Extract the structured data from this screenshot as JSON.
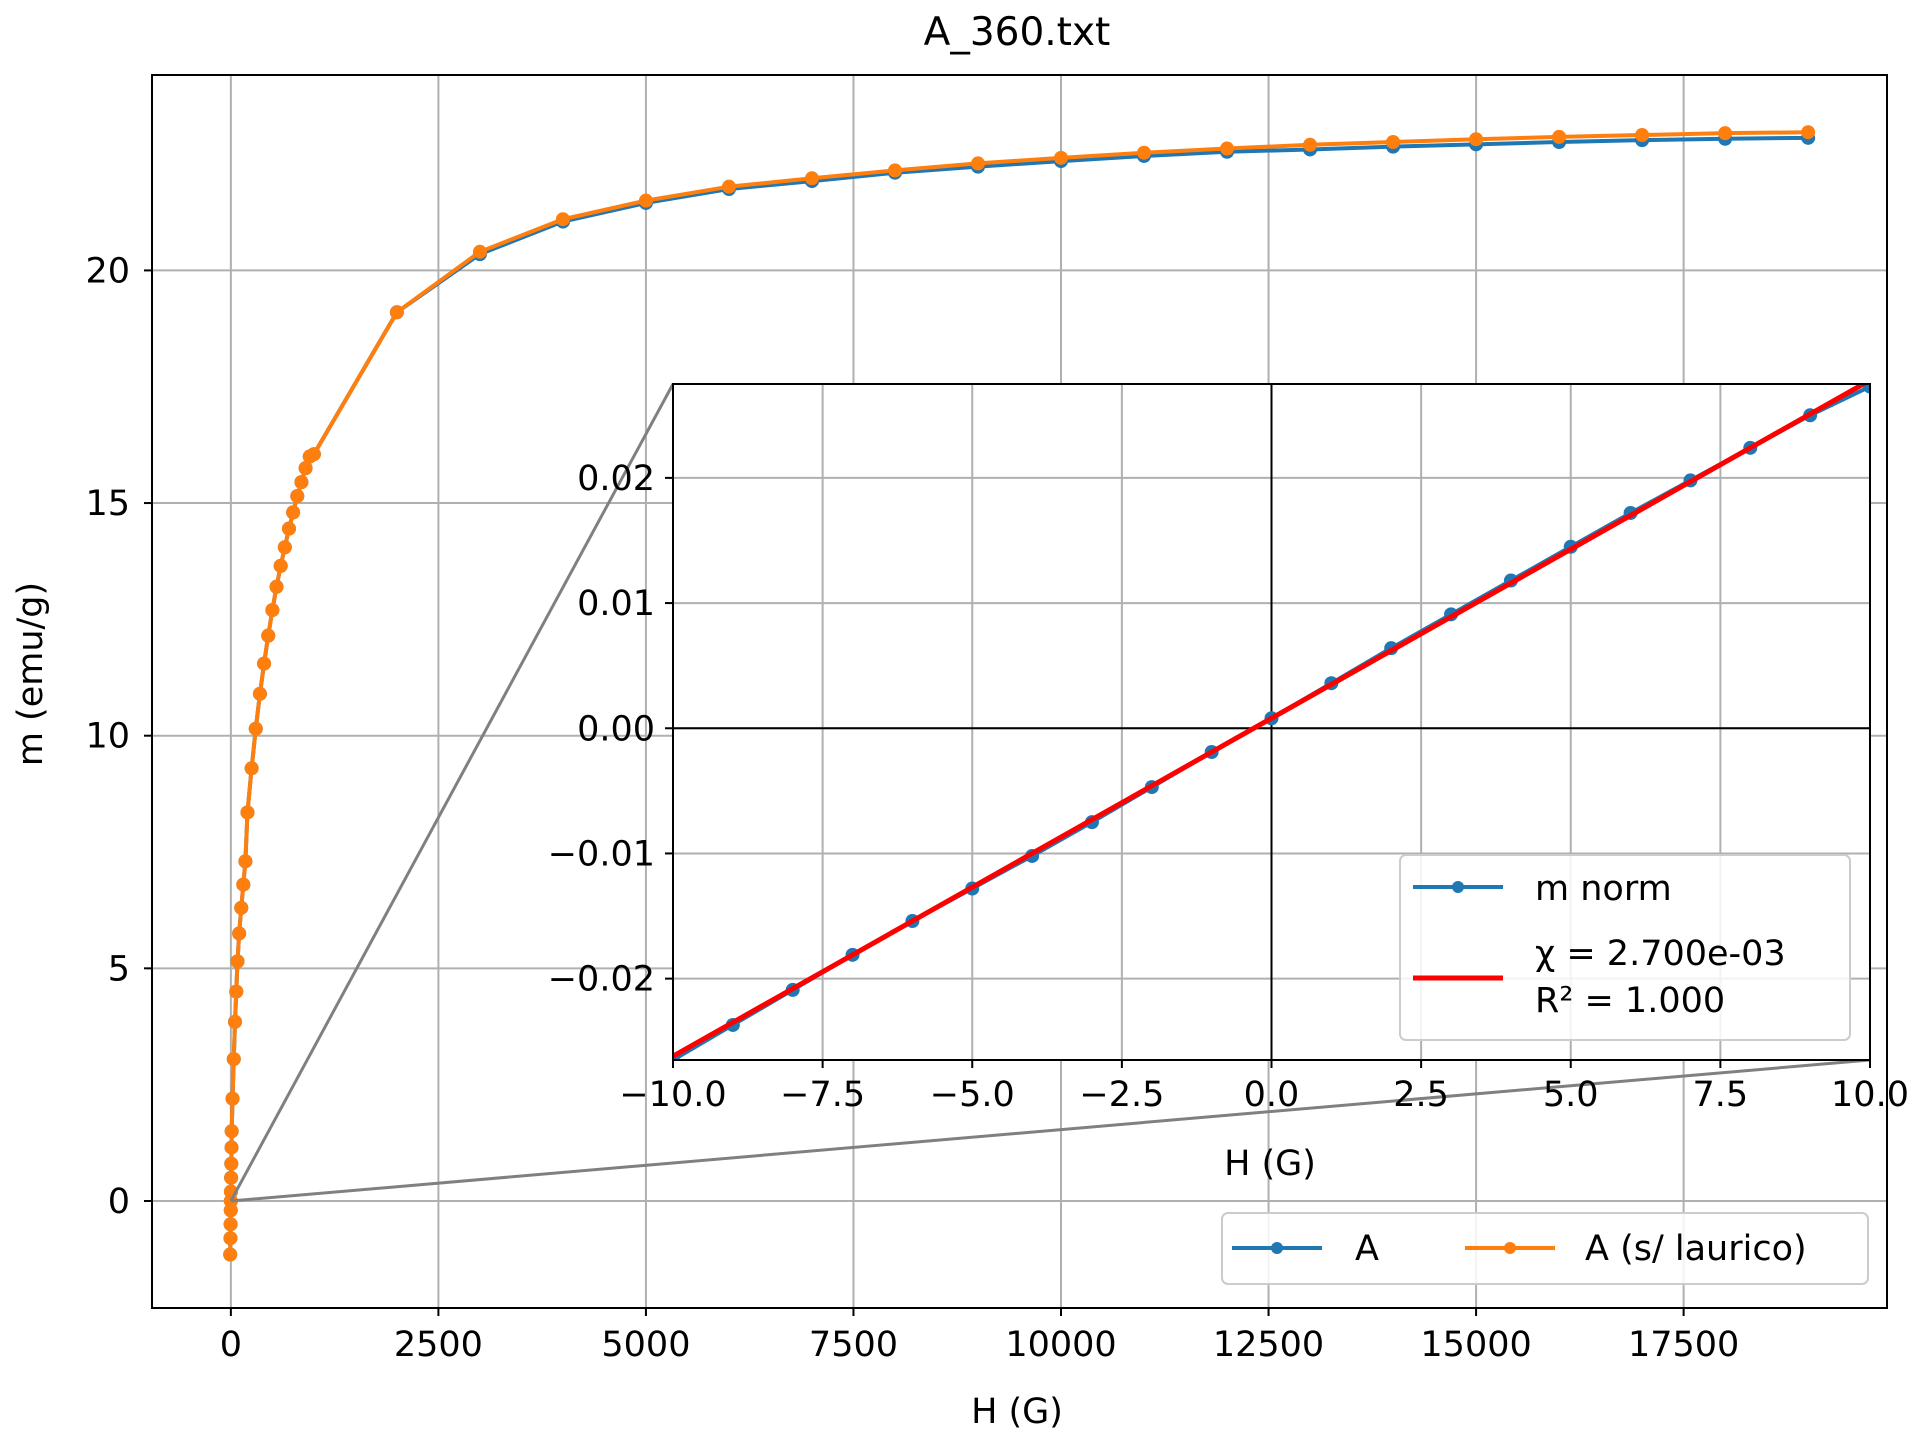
{
  "chart_data": [
    {
      "type": "line",
      "title": "A_360.txt",
      "xlabel": "H (G)",
      "ylabel": "m (emu/g)",
      "xlim": [
        -950,
        19950
      ],
      "ylim": [
        -2.3,
        24.2
      ],
      "grid": true,
      "xticks": [
        0,
        2500,
        5000,
        7500,
        10000,
        12500,
        15000,
        17500
      ],
      "xtick_labels": [
        "0",
        "2500",
        "5000",
        "7500",
        "10000",
        "12500",
        "15000",
        "17500"
      ],
      "yticks": [
        0,
        5,
        10,
        15,
        20
      ],
      "ytick_labels": [
        "0",
        "5",
        "10",
        "15",
        "20"
      ],
      "legend": {
        "placement": "lower-right",
        "entries": [
          "A",
          "A (s/ laurico)"
        ]
      },
      "series": [
        {
          "name": "A",
          "color": "#1f77b4",
          "marker": "circle",
          "x": [
            -8,
            -5,
            -3,
            -1,
            0,
            1,
            3,
            5,
            8,
            10,
            20,
            35,
            50,
            65,
            80,
            100,
            125,
            150,
            175,
            200,
            250,
            300,
            350,
            400,
            450,
            500,
            550,
            600,
            650,
            700,
            750,
            800,
            850,
            900,
            950,
            1000,
            2000,
            3000,
            4000,
            5000,
            6000,
            7000,
            8000,
            9000,
            10000,
            11000,
            12000,
            13000,
            14000,
            15000,
            16000,
            17000,
            18000,
            19000
          ],
          "y": [
            -1.15,
            -0.8,
            -0.5,
            -0.2,
            0.0,
            0.2,
            0.5,
            0.8,
            1.15,
            1.5,
            2.2,
            3.05,
            3.85,
            4.5,
            5.15,
            5.75,
            6.3,
            6.8,
            7.3,
            8.35,
            9.3,
            10.15,
            10.9,
            11.55,
            12.15,
            12.7,
            13.2,
            13.65,
            14.05,
            14.45,
            14.8,
            15.15,
            15.45,
            15.75,
            16.0,
            16.05,
            19.1,
            20.35,
            21.05,
            21.45,
            21.75,
            21.92,
            22.1,
            22.23,
            22.35,
            22.46,
            22.55,
            22.6,
            22.66,
            22.71,
            22.76,
            22.8,
            22.83,
            22.85
          ]
        },
        {
          "name": "A (s/ laurico)",
          "color": "#ff7f0e",
          "marker": "circle",
          "x": [
            -8,
            -5,
            -3,
            -1,
            0,
            1,
            3,
            5,
            8,
            10,
            20,
            35,
            50,
            65,
            80,
            100,
            125,
            150,
            175,
            200,
            250,
            300,
            350,
            400,
            450,
            500,
            550,
            600,
            650,
            700,
            750,
            800,
            850,
            900,
            950,
            1000,
            2000,
            3000,
            4000,
            5000,
            6000,
            7000,
            8000,
            9000,
            10000,
            11000,
            12000,
            13000,
            14000,
            15000,
            16000,
            17000,
            18000,
            19000
          ],
          "y": [
            -1.15,
            -0.8,
            -0.5,
            -0.2,
            0.0,
            0.2,
            0.5,
            0.8,
            1.15,
            1.5,
            2.2,
            3.05,
            3.85,
            4.5,
            5.15,
            5.75,
            6.3,
            6.8,
            7.3,
            8.35,
            9.3,
            10.15,
            10.9,
            11.55,
            12.15,
            12.7,
            13.2,
            13.65,
            14.05,
            14.45,
            14.8,
            15.15,
            15.45,
            15.75,
            16.0,
            16.05,
            19.1,
            20.4,
            21.1,
            21.5,
            21.8,
            21.98,
            22.15,
            22.3,
            22.42,
            22.53,
            22.62,
            22.7,
            22.76,
            22.82,
            22.87,
            22.91,
            22.95,
            22.97
          ]
        }
      ]
    },
    {
      "type": "line",
      "title": "",
      "xlabel": "H (G)",
      "ylabel": "",
      "xlim": [
        -10,
        10
      ],
      "ylim": [
        -0.0265,
        0.0275
      ],
      "grid": true,
      "xticks": [
        -10,
        -7.5,
        -5,
        -2.5,
        0,
        2.5,
        5,
        7.5,
        10
      ],
      "xtick_labels": [
        "−10.0",
        "−7.5",
        "−5.0",
        "−2.5",
        "0.0",
        "2.5",
        "5.0",
        "7.5",
        "10.0"
      ],
      "yticks": [
        -0.02,
        -0.01,
        0,
        0.01,
        0.02
      ],
      "ytick_labels": [
        "−0.02",
        "−0.01",
        "0.00",
        "0.01",
        "0.02"
      ],
      "legend": {
        "placement": "lower-right",
        "entries": [
          "m norm",
          "χ = 2.700e-03",
          "R² = 1.000"
        ]
      },
      "series": [
        {
          "name": "m norm",
          "color": "#1f77b4",
          "marker": "circle",
          "x": [
            -10,
            -9,
            -8,
            -7,
            -6,
            -5,
            -4,
            -3,
            -2,
            -1,
            0,
            1,
            2,
            3,
            4,
            5,
            6,
            7,
            8,
            9,
            10
          ],
          "y": [
            -0.0265,
            -0.0237,
            -0.0209,
            -0.0181,
            -0.0154,
            -0.0128,
            -0.0102,
            -0.0075,
            -0.0047,
            -0.0019,
            0.0008,
            0.0036,
            0.0064,
            0.0091,
            0.0118,
            0.0145,
            0.0172,
            0.0198,
            0.0224,
            0.025,
            0.0273
          ]
        },
        {
          "name": "χ = 2.700e-03",
          "color": "#ff0000",
          "marker": "none",
          "x": [
            -10,
            10
          ],
          "y": [
            -0.0262,
            0.0278
          ]
        }
      ]
    }
  ]
}
